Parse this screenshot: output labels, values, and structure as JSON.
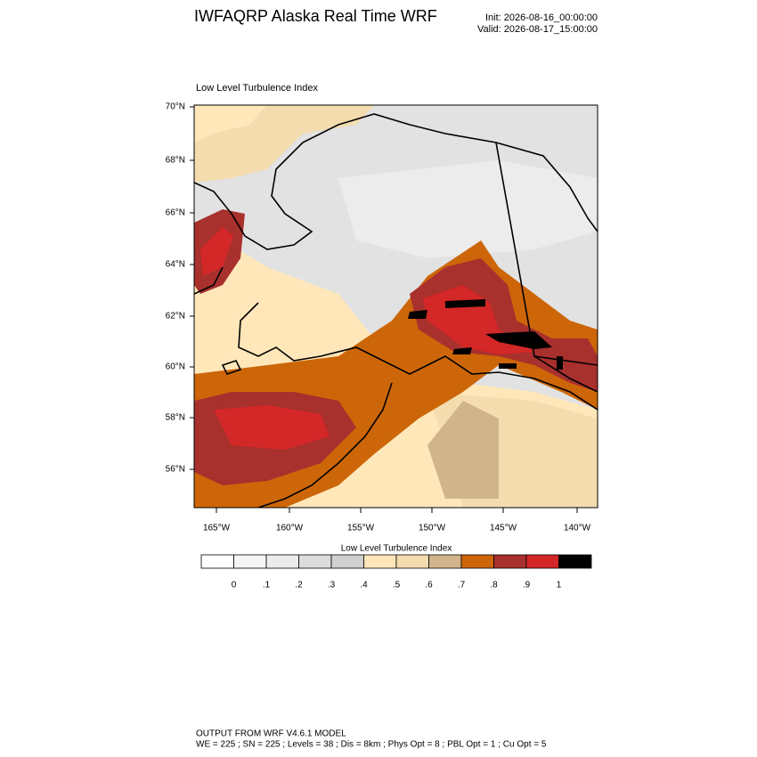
{
  "header": {
    "title": "IWFAQRP Alaska Real Time WRF",
    "init": "Init: 2026-08-16_00:00:00",
    "valid": "Valid: 2026-08-17_15:00:00"
  },
  "map": {
    "title": "Low Level Turbulence Index",
    "lat_labels": [
      "70°N",
      "68°N",
      "66°N",
      "64°N",
      "62°N",
      "60°N",
      "58°N",
      "56°N"
    ],
    "lon_labels": [
      "165°W",
      "160°W",
      "155°W",
      "150°W",
      "145°W",
      "140°W"
    ]
  },
  "colorbar": {
    "title": "Low Level Turbulence Index",
    "colors": [
      "#ffffff",
      "#f5f5f5",
      "#ececec",
      "#dcdcdc",
      "#d0d0d0",
      "#ffe7ba",
      "#f4dcae",
      "#d2b48c",
      "#cd6608",
      "#a8302d",
      "#d42727",
      "#000000"
    ],
    "labels": [
      "0",
      ".1",
      ".2",
      ".3",
      ".4",
      ".5",
      ".6",
      ".7",
      ".8",
      ".9",
      "1"
    ]
  },
  "footer": {
    "lines": [
      "OUTPUT FROM WRF V4.6.1 MODEL",
      "WE = 225 ; SN = 225 ; Levels = 38 ; Dis = 8km ; Phys Opt = 8 ; PBL Opt = 1 ; Cu Opt = 5"
    ]
  }
}
